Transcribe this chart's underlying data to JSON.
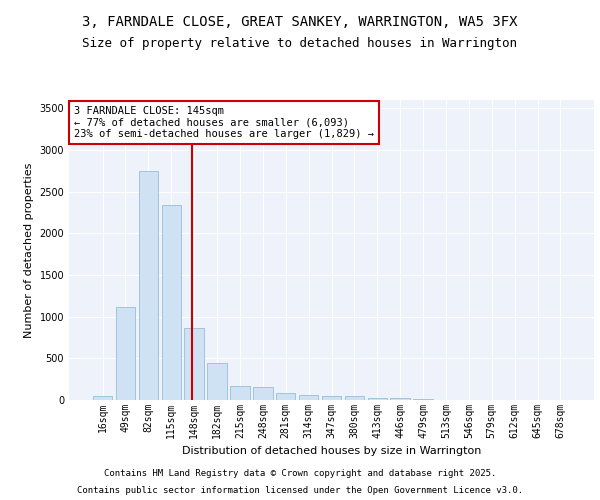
{
  "title_line1": "3, FARNDALE CLOSE, GREAT SANKEY, WARRINGTON, WA5 3FX",
  "title_line2": "Size of property relative to detached houses in Warrington",
  "xlabel": "Distribution of detached houses by size in Warrington",
  "ylabel": "Number of detached properties",
  "categories": [
    "16sqm",
    "49sqm",
    "82sqm",
    "115sqm",
    "148sqm",
    "182sqm",
    "215sqm",
    "248sqm",
    "281sqm",
    "314sqm",
    "347sqm",
    "380sqm",
    "413sqm",
    "446sqm",
    "479sqm",
    "513sqm",
    "546sqm",
    "579sqm",
    "612sqm",
    "645sqm",
    "678sqm"
  ],
  "values": [
    50,
    1120,
    2750,
    2340,
    870,
    440,
    170,
    160,
    90,
    60,
    50,
    45,
    25,
    20,
    10,
    5,
    3,
    2,
    1,
    1,
    1
  ],
  "bar_color": "#cfe2f3",
  "bar_edge_color": "#8ab4d4",
  "background_color": "#eef2fa",
  "grid_color": "#ffffff",
  "vline_color": "#cc0000",
  "annotation_text": "3 FARNDALE CLOSE: 145sqm\n← 77% of detached houses are smaller (6,093)\n23% of semi-detached houses are larger (1,829) →",
  "annotation_box_color": "#cc0000",
  "ylim": [
    0,
    3600
  ],
  "yticks": [
    0,
    500,
    1000,
    1500,
    2000,
    2500,
    3000,
    3500
  ],
  "footer_line1": "Contains HM Land Registry data © Crown copyright and database right 2025.",
  "footer_line2": "Contains public sector information licensed under the Open Government Licence v3.0.",
  "title_fontsize": 10,
  "subtitle_fontsize": 9,
  "label_fontsize": 8,
  "tick_fontsize": 7,
  "annotation_fontsize": 7.5,
  "footer_fontsize": 6.5
}
